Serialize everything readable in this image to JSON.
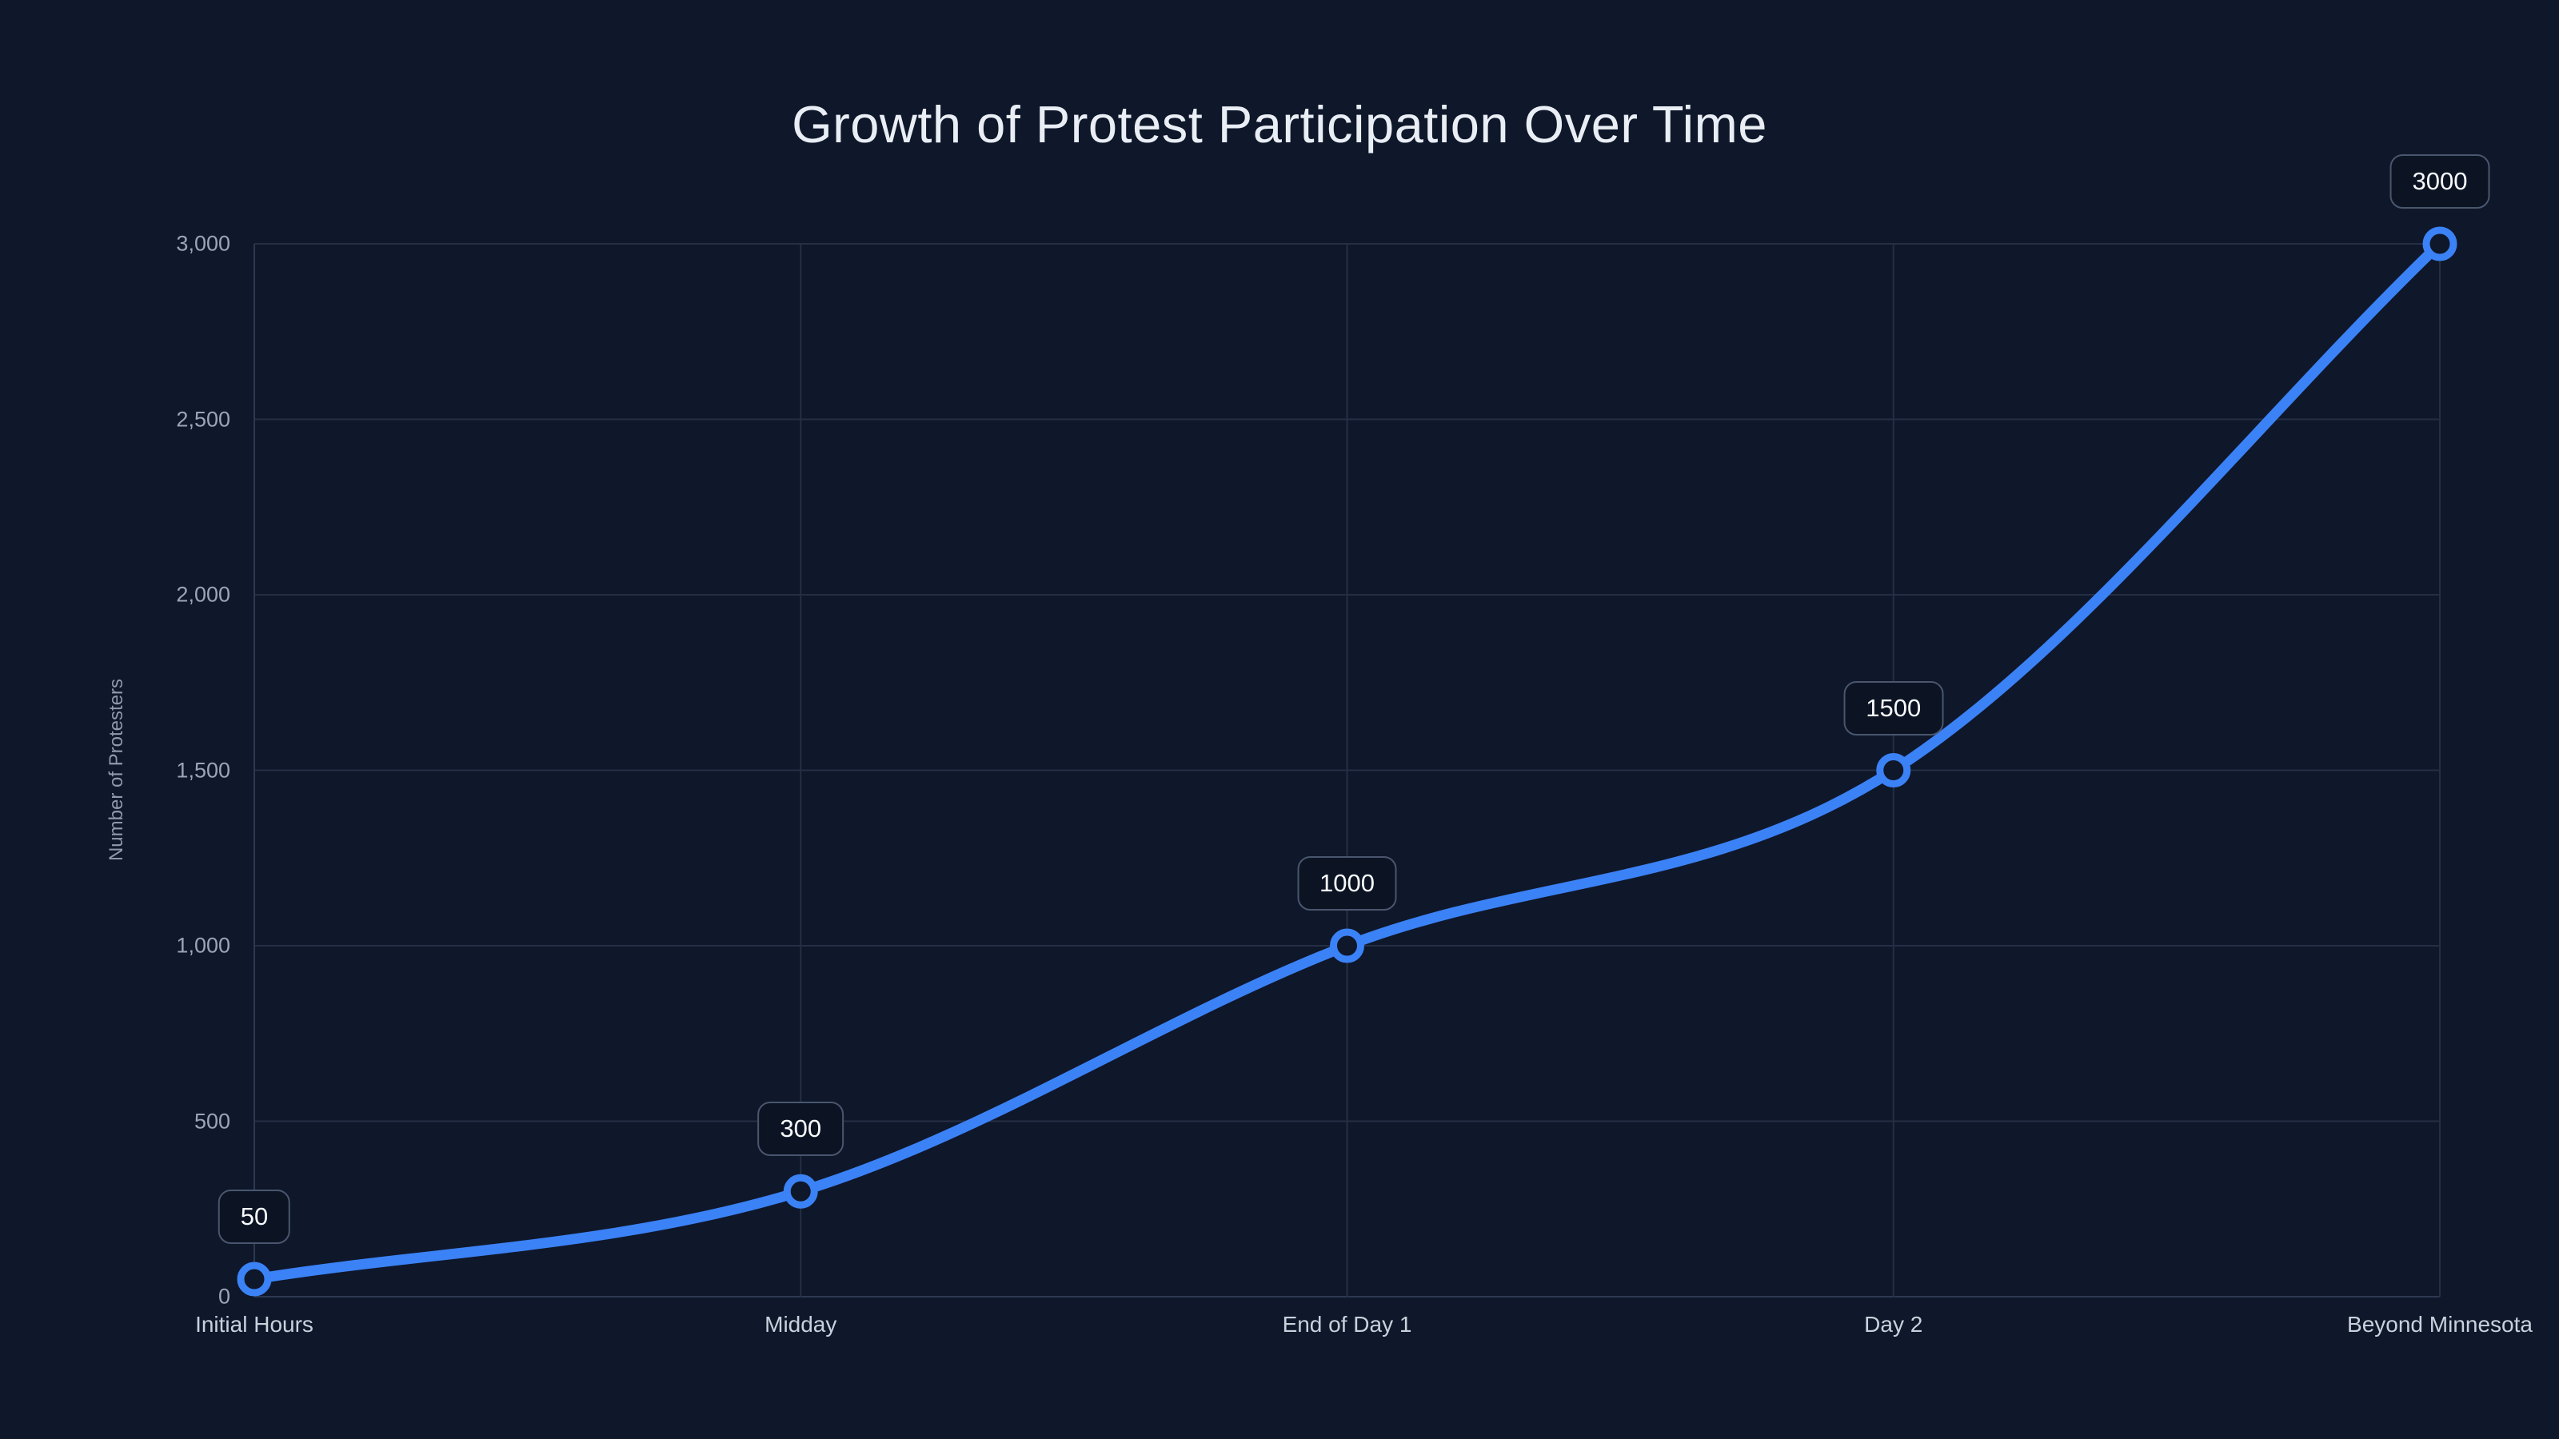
{
  "title": "Growth of Protest Participation Over Time",
  "chart_data": {
    "type": "line",
    "title": "Growth of Protest Participation Over Time",
    "categories": [
      "Initial Hours",
      "Midday",
      "End of Day 1",
      "Day 2",
      "Beyond Minnesota"
    ],
    "series": [
      {
        "name": "Number of Protesters",
        "values": [
          50,
          300,
          1000,
          1500,
          3000
        ]
      }
    ],
    "point_labels": [
      "50",
      "300",
      "1000",
      "1500",
      "3000"
    ],
    "xlabel": "",
    "ylabel": "Number of Protesters",
    "ylim": [
      0,
      3000
    ],
    "yticks": [
      0,
      500,
      1000,
      1500,
      2000,
      2500,
      3000
    ],
    "ytick_labels": [
      "0",
      "500",
      "1,000",
      "1,500",
      "2,000",
      "2,500",
      "3,000"
    ],
    "grid": true,
    "legend": false,
    "curve": "monotone",
    "markers": "open-circle"
  },
  "colors": {
    "background": "#0f172a",
    "line": "#3b82f6",
    "marker_fill": "#0f172a",
    "grid": "#242f45",
    "axis": "#2d3850",
    "title_text": "#e9eef5",
    "ytick_text": "#9aa6b8",
    "xtick_text": "#c9d1dd",
    "axis_title_text": "#8e9aac",
    "label_box_bg": "#0c1424",
    "label_box_border": "#49566e",
    "label_text": "#f8fafc"
  }
}
